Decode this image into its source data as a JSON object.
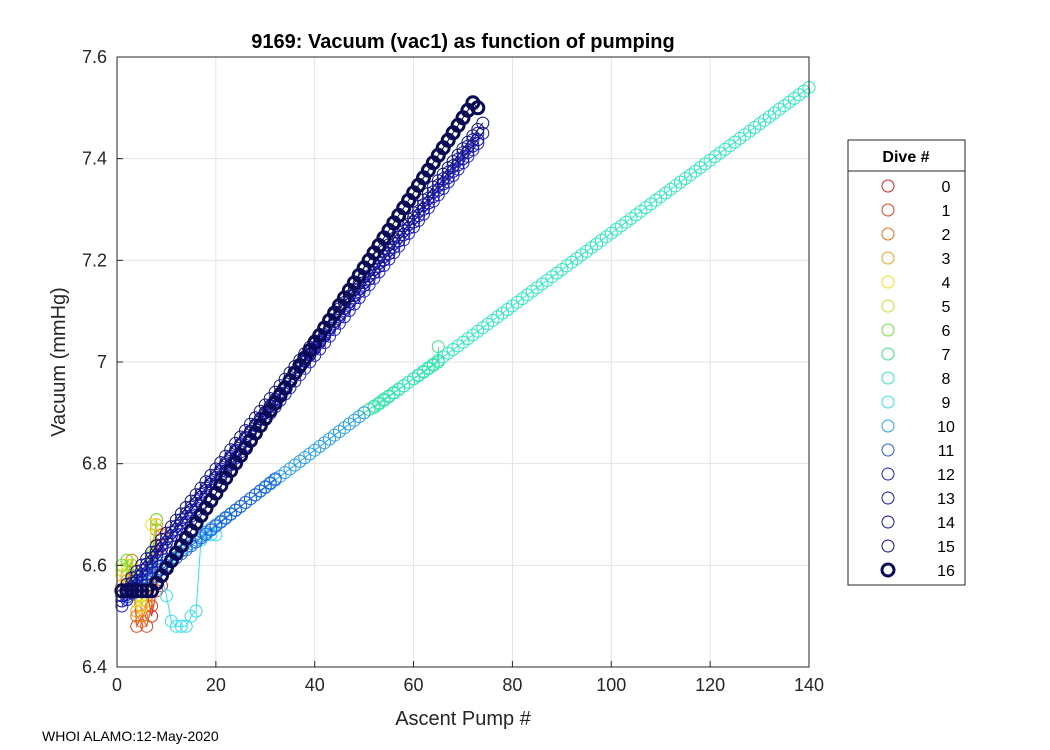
{
  "chart_data": {
    "type": "scatter",
    "title": "9169: Vacuum (vac1) as function of pumping",
    "xlabel": "Ascent Pump #",
    "ylabel": "Vacuum (mmHg)",
    "xlim": [
      0,
      140
    ],
    "ylim": [
      6.4,
      7.6
    ],
    "xticks": [
      0,
      20,
      40,
      60,
      80,
      100,
      120,
      140
    ],
    "yticks": [
      6.4,
      6.6,
      6.8,
      7,
      7.2,
      7.4,
      7.6
    ],
    "ytick_labels": [
      "6.4",
      "6.6",
      "6.8",
      "7",
      "7.2",
      "7.4",
      "7.6"
    ],
    "grid": true,
    "legend_title": "Dive #",
    "legend_position": "right-outside",
    "series": [
      {
        "name": "0",
        "color": "#d62020",
        "points": [
          [
            1,
            6.55
          ],
          [
            2,
            6.55
          ],
          [
            3,
            6.58
          ],
          [
            4,
            6.55
          ],
          [
            5,
            6.55
          ],
          [
            6,
            6.55
          ],
          [
            7,
            6.5
          ],
          [
            8,
            6.55
          ],
          [
            9,
            6.56
          ]
        ]
      },
      {
        "name": "1",
        "color": "#e0401c",
        "points": [
          [
            1,
            6.55
          ],
          [
            2,
            6.56
          ],
          [
            3,
            6.6
          ],
          [
            4,
            6.48
          ],
          [
            5,
            6.5
          ],
          [
            6,
            6.48
          ],
          [
            7,
            6.52
          ],
          [
            8,
            6.64
          ],
          [
            9,
            6.62
          ]
        ]
      },
      {
        "name": "2",
        "color": "#e86a18",
        "points": [
          [
            1,
            6.55
          ],
          [
            2,
            6.57
          ],
          [
            3,
            6.61
          ],
          [
            4,
            6.5
          ],
          [
            5,
            6.49
          ],
          [
            6,
            6.52
          ],
          [
            7,
            6.55
          ],
          [
            8,
            6.67
          ],
          [
            9,
            6.66
          ]
        ]
      },
      {
        "name": "3",
        "color": "#f0a020",
        "points": [
          [
            1,
            6.56
          ],
          [
            2,
            6.58
          ],
          [
            3,
            6.6
          ],
          [
            4,
            6.51
          ],
          [
            5,
            6.5
          ],
          [
            6,
            6.53
          ],
          [
            7,
            6.56
          ],
          [
            8,
            6.68
          ]
        ]
      },
      {
        "name": "4",
        "color": "#f4e020",
        "points": [
          [
            1,
            6.58
          ],
          [
            2,
            6.6
          ],
          [
            3,
            6.59
          ],
          [
            4,
            6.53
          ],
          [
            5,
            6.52
          ],
          [
            6,
            6.55
          ],
          [
            7,
            6.68
          ],
          [
            8,
            6.69
          ]
        ]
      },
      {
        "name": "5",
        "color": "#c4e030",
        "points": [
          [
            1,
            6.59
          ],
          [
            2,
            6.61
          ],
          [
            3,
            6.6
          ],
          [
            4,
            6.54
          ],
          [
            5,
            6.54
          ],
          [
            6,
            6.56
          ],
          [
            7,
            6.6
          ],
          [
            8,
            6.69
          ]
        ]
      },
      {
        "name": "6",
        "color": "#6ee040",
        "points": [
          [
            1,
            6.6
          ],
          [
            2,
            6.61
          ],
          [
            3,
            6.58
          ],
          [
            4,
            6.55
          ],
          [
            5,
            6.55
          ],
          [
            6,
            6.56
          ],
          [
            7,
            6.62
          ],
          [
            8,
            6.69
          ]
        ]
      },
      {
        "name": "7",
        "color": "#38e08a",
        "linear": {
          "x_start": 50,
          "x_end": 65,
          "y_start": 6.9,
          "y_end": 7.0
        },
        "extra_points": [
          [
            65,
            7.03
          ]
        ]
      },
      {
        "name": "8",
        "color": "#30e8c0",
        "linear": {
          "x_start": 52,
          "x_end": 140,
          "y_start": 6.91,
          "y_end": 7.54
        }
      },
      {
        "name": "9",
        "color": "#30e0f0",
        "points": [
          [
            8,
            6.6
          ],
          [
            9,
            6.58
          ],
          [
            10,
            6.54
          ],
          [
            11,
            6.49
          ],
          [
            12,
            6.48
          ],
          [
            13,
            6.48
          ],
          [
            14,
            6.48
          ],
          [
            15,
            6.5
          ],
          [
            16,
            6.51
          ],
          [
            17,
            6.65
          ],
          [
            18,
            6.66
          ],
          [
            19,
            6.66
          ],
          [
            20,
            6.66
          ]
        ]
      },
      {
        "name": "10",
        "color": "#28a0e8",
        "linear": {
          "x_start": 1,
          "x_end": 50,
          "y_start": 6.54,
          "y_end": 6.9
        }
      },
      {
        "name": "11",
        "color": "#2060d8",
        "linear": {
          "x_start": 1,
          "x_end": 32,
          "y_start": 6.53,
          "y_end": 6.77
        }
      },
      {
        "name": "12",
        "color": "#2020c8",
        "linear": {
          "x_start": 1,
          "x_end": 73,
          "y_start": 6.52,
          "y_end": 7.43
        }
      },
      {
        "name": "13",
        "color": "#1818b0",
        "linear": {
          "x_start": 1,
          "x_end": 73,
          "y_start": 6.53,
          "y_end": 7.45
        }
      },
      {
        "name": "14",
        "color": "#141498",
        "linear": {
          "x_start": 1,
          "x_end": 74,
          "y_start": 6.54,
          "y_end": 7.45
        }
      },
      {
        "name": "15",
        "color": "#101078",
        "linear": {
          "x_start": 1,
          "x_end": 74,
          "y_start": 6.55,
          "y_end": 7.47
        }
      },
      {
        "name": "16",
        "color": "#0a0a55",
        "bold": true,
        "linear": {
          "x_start": 1,
          "x_end": 72,
          "y_start": 6.55,
          "y_end": 7.51
        },
        "flat_until": 7,
        "extra_points": [
          [
            73,
            7.5
          ]
        ]
      }
    ]
  },
  "footer_text": "WHOI ALAMO:12-May-2020"
}
